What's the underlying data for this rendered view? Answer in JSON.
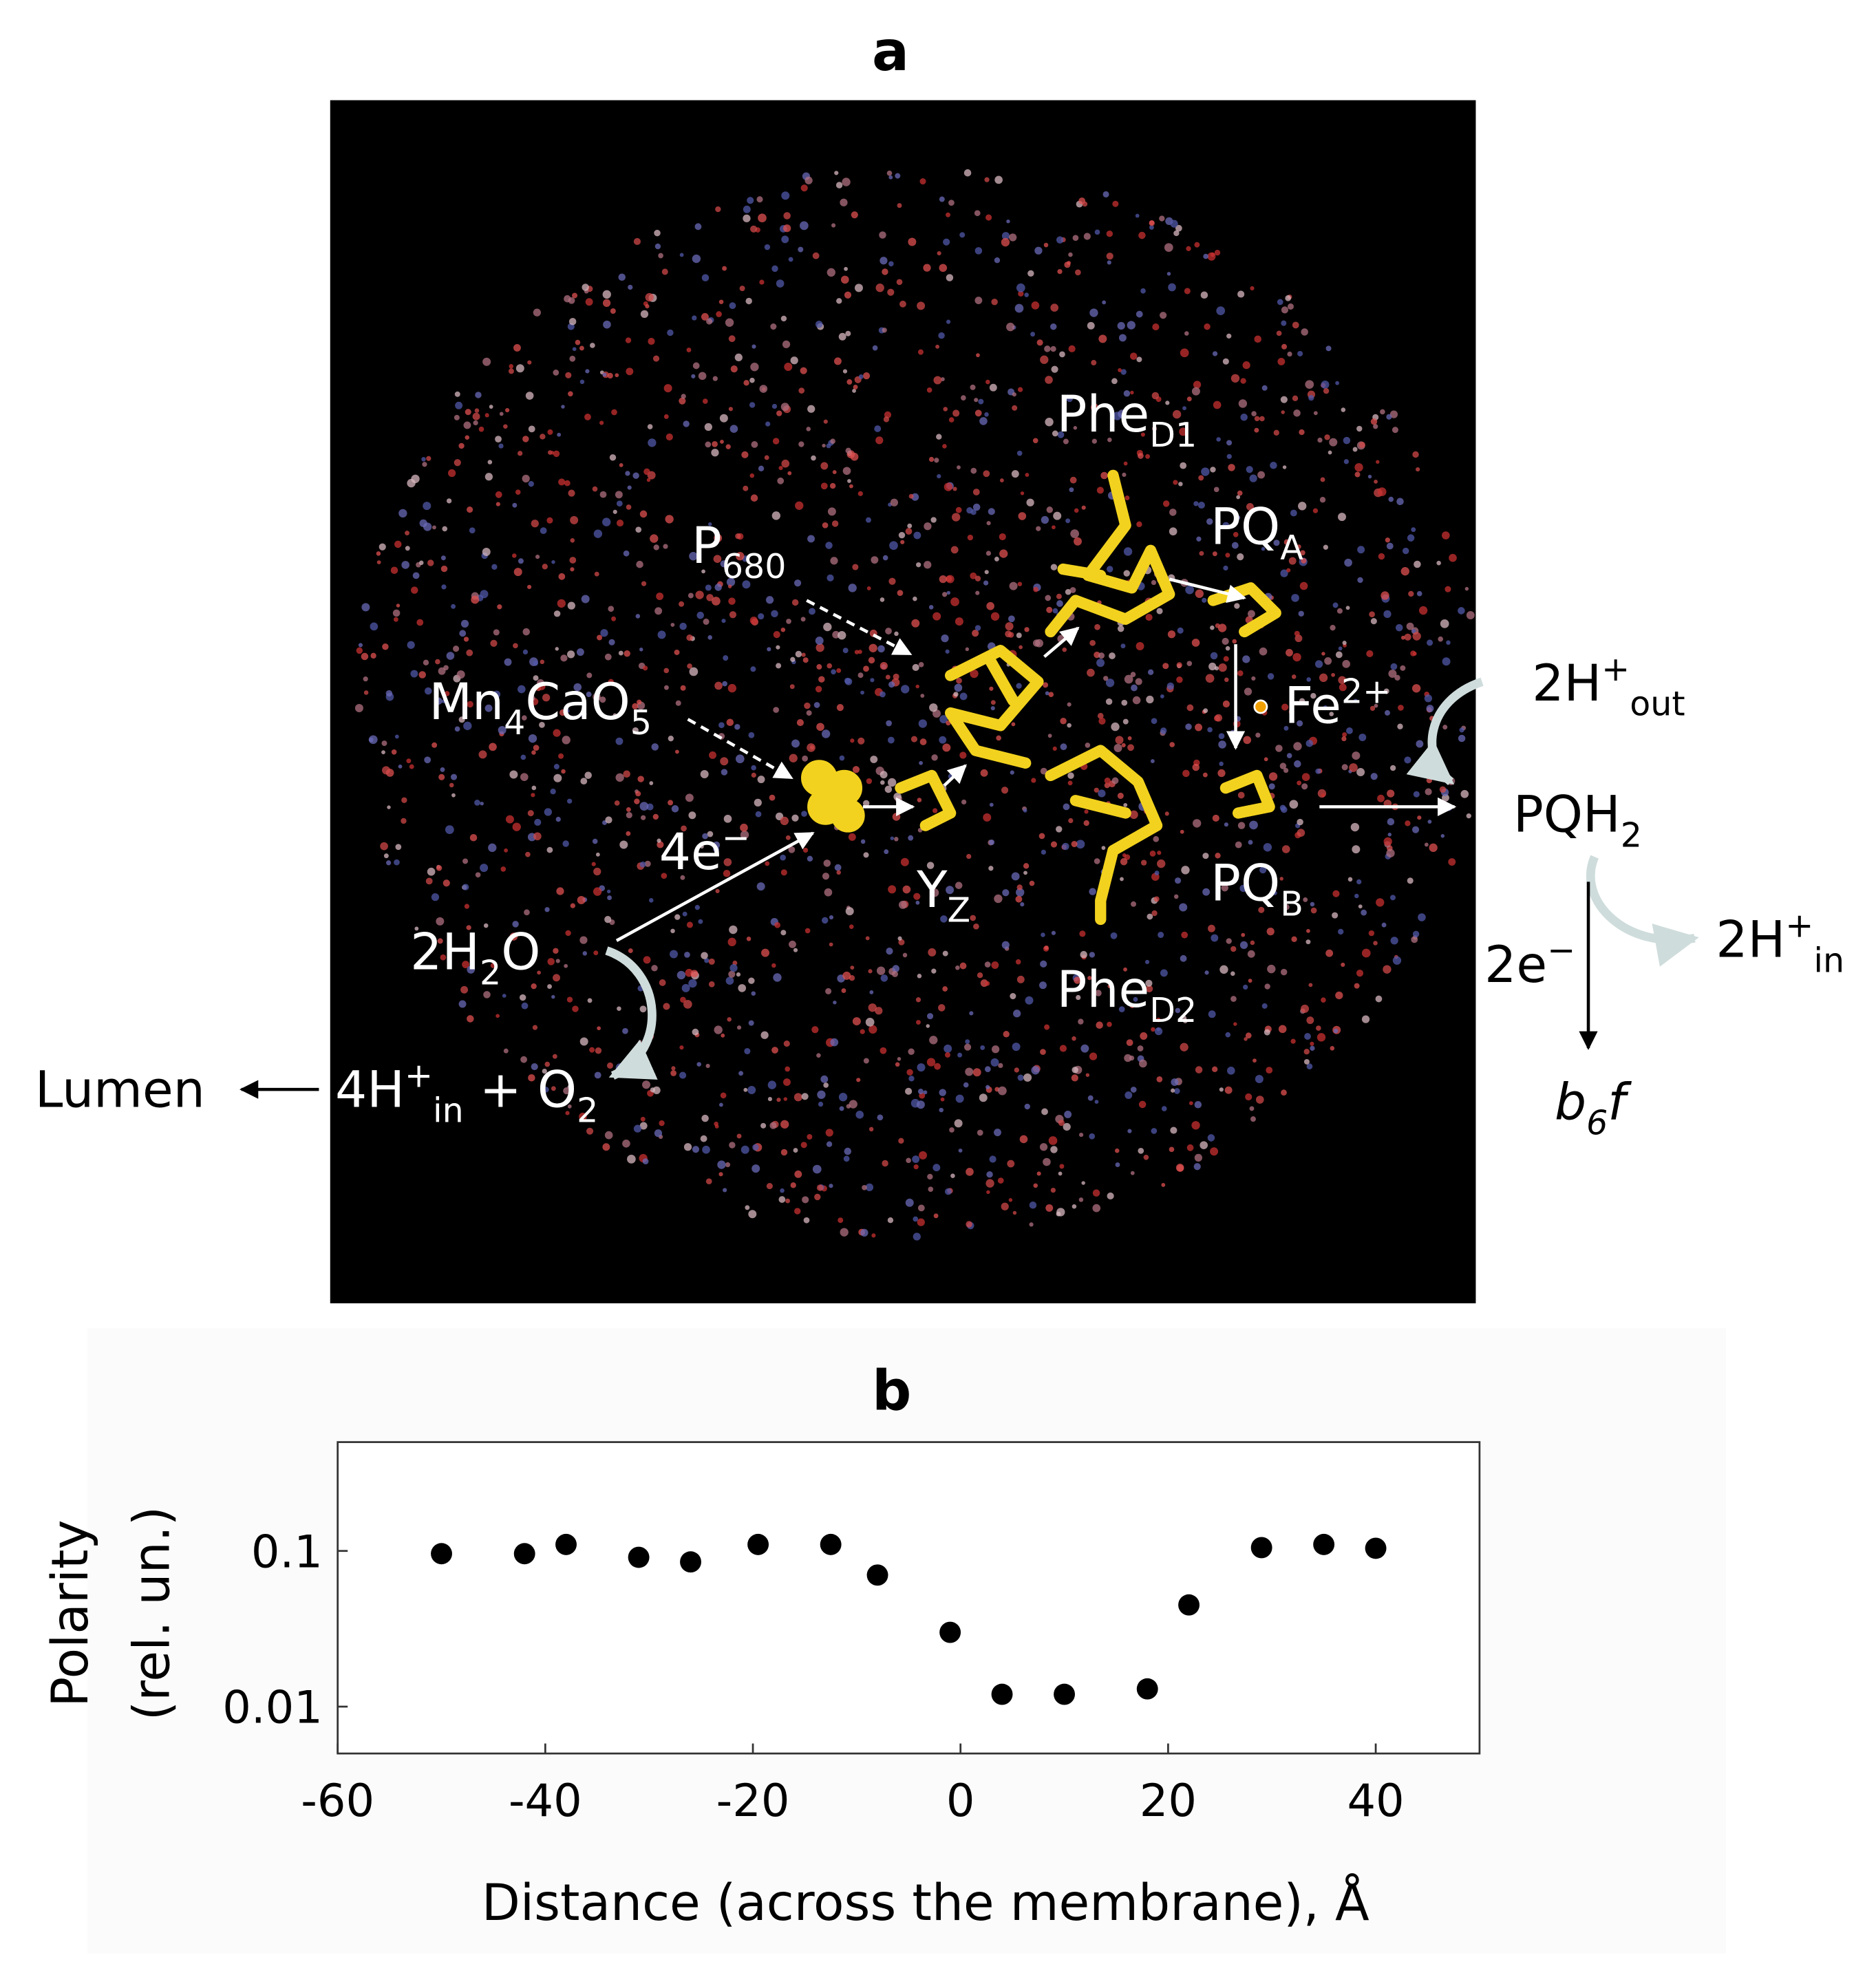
{
  "panel_a": {
    "label": "a",
    "annotations": [
      {
        "parts": [
          "Phe",
          {
            "sub": "D1"
          }
        ],
        "color": "#ffffff"
      },
      {
        "parts": [
          "PQ",
          {
            "sub": "A"
          }
        ],
        "color": "#ffffff"
      },
      {
        "parts": [
          "P",
          {
            "sub": "680"
          }
        ],
        "color": "#ffffff"
      },
      {
        "parts": [
          "Mn",
          {
            "sub": "4"
          },
          "CaO",
          {
            "sub": "5"
          }
        ],
        "color": "#ffffff"
      },
      {
        "parts": [
          "Fe",
          {
            "sup": "2+"
          }
        ],
        "color": "#ffffff"
      },
      {
        "parts": [
          "2H",
          {
            "sup": "+"
          },
          {
            "sub": "out"
          }
        ],
        "color": "#000000"
      },
      {
        "parts": [
          "PQH",
          {
            "sub": "2"
          }
        ],
        "color": "#000000"
      },
      {
        "parts": [
          "4e",
          {
            "sup": "−"
          }
        ],
        "color": "#ffffff"
      },
      {
        "parts": [
          "Y",
          {
            "sub": "Z"
          }
        ],
        "color": "#ffffff"
      },
      {
        "parts": [
          "PQ",
          {
            "sub": "B"
          }
        ],
        "color": "#ffffff"
      },
      {
        "parts": [
          "2H",
          {
            "sub": "2"
          },
          "O"
        ],
        "color": "#ffffff"
      },
      {
        "parts": [
          "Phe",
          {
            "sub": "D2"
          }
        ],
        "color": "#ffffff"
      },
      {
        "parts": [
          "2e",
          {
            "sup": "−"
          }
        ],
        "color": "#000000"
      },
      {
        "parts": [
          "2H",
          {
            "sup": "+"
          },
          {
            "sub": "in"
          }
        ],
        "color": "#000000"
      },
      {
        "parts": [
          "Lumen"
        ],
        "color": "#000000"
      },
      {
        "parts": [
          "4H",
          {
            "sup": "+"
          },
          {
            "sub": "in"
          },
          " +  O",
          {
            "sub": "2"
          }
        ],
        "color": "#ffffff"
      },
      {
        "parts": [
          "b",
          {
            "sub": "6"
          },
          "f"
        ],
        "color": "#000000",
        "italic": true
      }
    ]
  },
  "chart_data": {
    "type": "scatter",
    "title": "b",
    "xlabel": "Distance (across the membrane), Å",
    "ylabel": [
      "Polarity",
      "(rel. un.)"
    ],
    "x": [
      -50,
      -42,
      -38,
      -31,
      -26,
      -19.5,
      -12.5,
      -8,
      -1,
      4,
      10,
      18,
      22,
      29,
      35,
      40
    ],
    "values": [
      0.096,
      0.096,
      0.11,
      0.091,
      0.085,
      0.11,
      0.11,
      0.07,
      0.03,
      0.012,
      0.012,
      0.013,
      0.045,
      0.105,
      0.11,
      0.104
    ],
    "color": "#000000",
    "xlim": [
      -60,
      50
    ],
    "ylim": [
      0.005,
      0.5
    ],
    "xticks": [
      -60,
      -40,
      -20,
      0,
      20,
      40
    ],
    "yticks": [
      0.01,
      0.1
    ],
    "ylog": true
  }
}
